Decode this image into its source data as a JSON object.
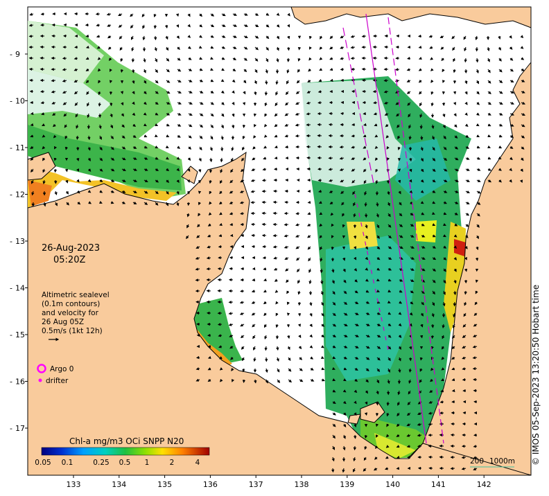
{
  "date_label": "26-Aug-2023",
  "time_label": "05:20Z",
  "altimetry_note": [
    "Altimetric sealevel",
    "(0.1m contours)",
    "and velocity for",
    "26 Aug 05Z",
    "0.5m/s (1kt 12h)"
  ],
  "legend": {
    "argo": "Argo 0",
    "drifter": "drifter"
  },
  "colorbar": {
    "title": "Chl-a mg/m3 OCi SNPP N20",
    "ticks": [
      "0.05",
      "0.1",
      "0.25",
      "0.5",
      "1",
      "2",
      "4"
    ]
  },
  "scale_bar": {
    "label_200": "200",
    "label_1000": "1000m"
  },
  "credit": "© IMOS 05-Sep-2023 13:20:50 Hobart time",
  "axes": {
    "lon_ticks": [
      "133",
      "134",
      "135",
      "136",
      "137",
      "138",
      "139",
      "140",
      "141",
      "142"
    ],
    "lat_ticks": [
      "9",
      "10",
      "11",
      "12",
      "13",
      "14",
      "15",
      "16",
      "17"
    ]
  },
  "colors": {
    "land": "#f9cb9c",
    "ocean": "#ffffff",
    "argo": "#ff00ff",
    "track": "#cc00cc"
  }
}
